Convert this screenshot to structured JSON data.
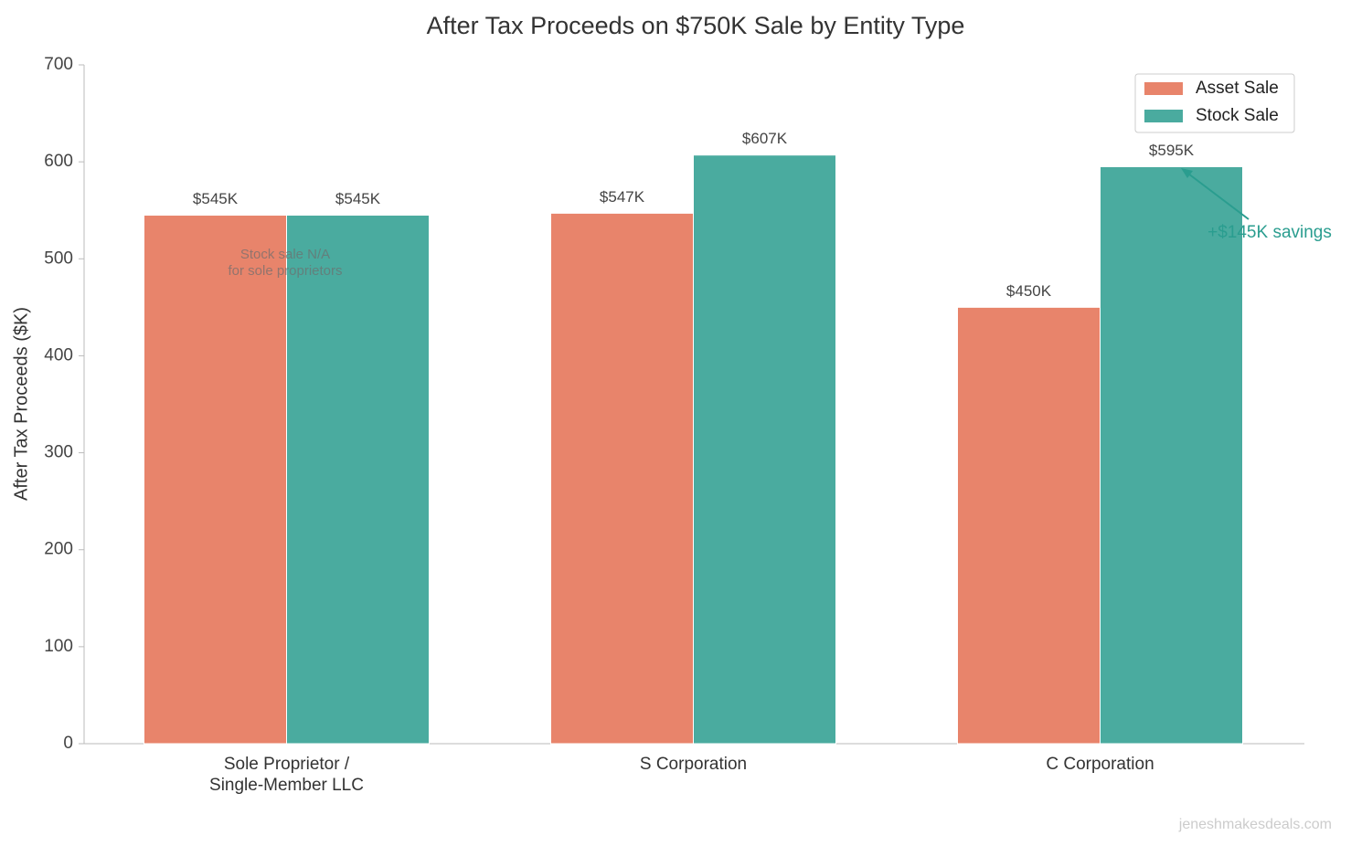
{
  "chart_data": {
    "type": "bar",
    "title": "After Tax Proceeds on $750K Sale by Entity Type",
    "y_label": "After Tax Proceeds ($K)",
    "categories": [
      "Sole Proprietor /\nSingle-Member LLC",
      "S Corporation",
      "C Corporation"
    ],
    "series": [
      {
        "name": "Asset Sale",
        "color": "#e8846b",
        "values": [
          545,
          547,
          450
        ],
        "value_labels": [
          "$545K",
          "$547K",
          "$450K"
        ]
      },
      {
        "name": "Stock Sale",
        "color": "#4aab9f",
        "values": [
          545,
          607,
          595
        ],
        "value_labels": [
          "$545K",
          "$607K",
          "$595K"
        ]
      }
    ],
    "ylim": [
      0,
      700
    ],
    "yticks": [
      0,
      100,
      200,
      300,
      400,
      500,
      600,
      700
    ],
    "legend": "upper right",
    "annotations": [
      "Stock sale N/A\nfor sole proprietors",
      "+$145K savings"
    ],
    "watermark": "jeneshmakesdeals.com"
  }
}
